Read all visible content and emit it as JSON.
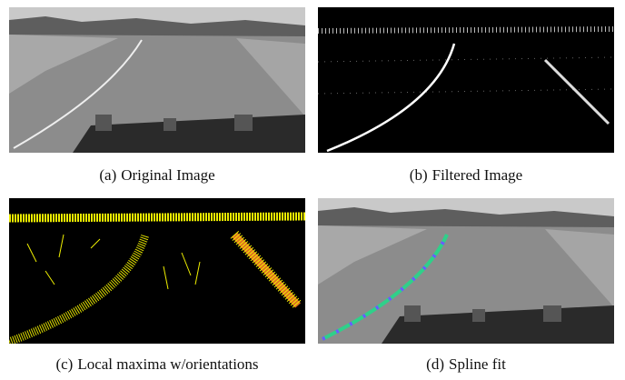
{
  "figures": [
    {
      "label": "(a)",
      "caption": "Original Image"
    },
    {
      "label": "(b)",
      "caption": "Filtered Image"
    },
    {
      "label": "(c)",
      "caption": "Local maxima w/orientations"
    },
    {
      "label": "(d)",
      "caption": "Spline fit"
    }
  ]
}
